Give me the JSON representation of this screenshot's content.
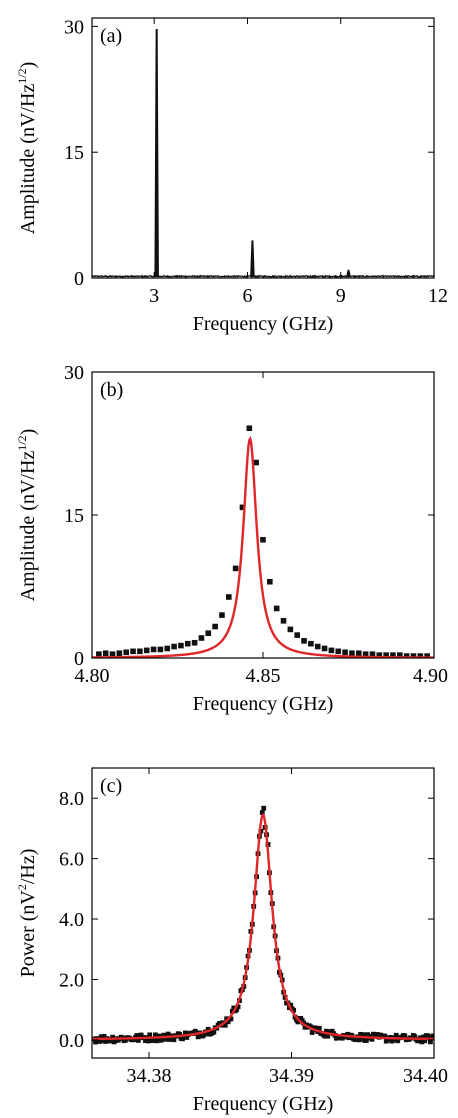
{
  "colors": {
    "data": "#111111",
    "fit": "#e0262a",
    "axis": "#000000"
  },
  "chart_data": [
    {
      "type": "line",
      "panel_label": "(a)",
      "xlabel": "Frequency (GHz)",
      "ylabel_main": "Amplitude (nV/Hz",
      "ylabel_sup": "1/2",
      "ylabel_tail": ")",
      "xlim": [
        1,
        12
      ],
      "ylim": [
        0,
        31
      ],
      "xticks": [
        3,
        6,
        9,
        12
      ],
      "xtick_labels": [
        "3",
        "6",
        "9",
        "12"
      ],
      "yticks": [
        0,
        15,
        30
      ],
      "ytick_labels": [
        "0",
        "15",
        "30"
      ],
      "baseline": 0.2,
      "peaks": [
        {
          "x": 3.08,
          "y": 29.6
        },
        {
          "x": 6.16,
          "y": 4.4
        },
        {
          "x": 9.25,
          "y": 0.9
        }
      ]
    },
    {
      "type": "scatter",
      "panel_label": "(b)",
      "xlabel": "Frequency (GHz)",
      "ylabel_main": "Amplitude (nV/Hz",
      "ylabel_sup": "1/2",
      "ylabel_tail": ")",
      "xlim": [
        4.8,
        4.9
      ],
      "ylim": [
        0,
        30
      ],
      "xticks": [
        4.8,
        4.85,
        4.9
      ],
      "xtick_labels": [
        "4.80",
        "4.85",
        "4.90"
      ],
      "yticks": [
        0,
        15,
        30
      ],
      "ytick_labels": [
        "0",
        "15",
        "30"
      ],
      "fit": {
        "model": "lorentzian",
        "center": 4.8462,
        "hwhm": 0.0024,
        "amplitude": 23.0,
        "offset": 0
      },
      "points": [
        [
          4.802,
          0.4
        ],
        [
          4.804,
          0.5
        ],
        [
          4.806,
          0.4
        ],
        [
          4.808,
          0.5
        ],
        [
          4.81,
          0.6
        ],
        [
          4.812,
          0.7
        ],
        [
          4.814,
          0.7
        ],
        [
          4.816,
          0.8
        ],
        [
          4.818,
          0.9
        ],
        [
          4.82,
          0.9
        ],
        [
          4.822,
          1.0
        ],
        [
          4.824,
          1.2
        ],
        [
          4.826,
          1.3
        ],
        [
          4.828,
          1.5
        ],
        [
          4.83,
          1.6
        ],
        [
          4.832,
          2.1
        ],
        [
          4.834,
          2.6
        ],
        [
          4.836,
          3.3
        ],
        [
          4.838,
          4.5
        ],
        [
          4.84,
          6.4
        ],
        [
          4.842,
          9.4
        ],
        [
          4.844,
          15.8
        ],
        [
          4.846,
          24.1
        ],
        [
          4.848,
          20.5
        ],
        [
          4.85,
          12.4
        ],
        [
          4.852,
          8.0
        ],
        [
          4.854,
          5.2
        ],
        [
          4.856,
          3.9
        ],
        [
          4.858,
          3.0
        ],
        [
          4.86,
          2.4
        ],
        [
          4.862,
          1.8
        ],
        [
          4.864,
          1.5
        ],
        [
          4.866,
          1.2
        ],
        [
          4.868,
          1.0
        ],
        [
          4.87,
          0.8
        ],
        [
          4.872,
          0.7
        ],
        [
          4.874,
          0.6
        ],
        [
          4.876,
          0.5
        ],
        [
          4.878,
          0.5
        ],
        [
          4.88,
          0.4
        ],
        [
          4.882,
          0.4
        ],
        [
          4.884,
          0.3
        ],
        [
          4.886,
          0.3
        ],
        [
          4.888,
          0.3
        ],
        [
          4.89,
          0.3
        ],
        [
          4.892,
          0.2
        ],
        [
          4.894,
          0.2
        ],
        [
          4.896,
          0.2
        ],
        [
          4.898,
          0.2
        ]
      ]
    },
    {
      "type": "scatter",
      "panel_label": "(c)",
      "xlabel": "Frequency (GHz)",
      "ylabel_main": "Power (nV",
      "ylabel_sup": "2",
      "ylabel_tail": "/Hz)",
      "xlim": [
        34.376,
        34.4
      ],
      "ylim": [
        -0.6,
        9.0
      ],
      "xticks": [
        34.38,
        34.39,
        34.4
      ],
      "xtick_labels": [
        "34.38",
        "34.39",
        "34.40"
      ],
      "yticks": [
        0,
        2,
        4,
        6,
        8
      ],
      "ytick_labels": [
        "0.0",
        "2.0",
        "4.0",
        "6.0",
        "8.0"
      ],
      "fit": {
        "model": "lorentzian",
        "center": 34.388,
        "hwhm": 0.00078,
        "amplitude": 7.45,
        "offset": 0.0
      },
      "point_noise": 0.45,
      "point_spacing": 0.0001
    }
  ]
}
